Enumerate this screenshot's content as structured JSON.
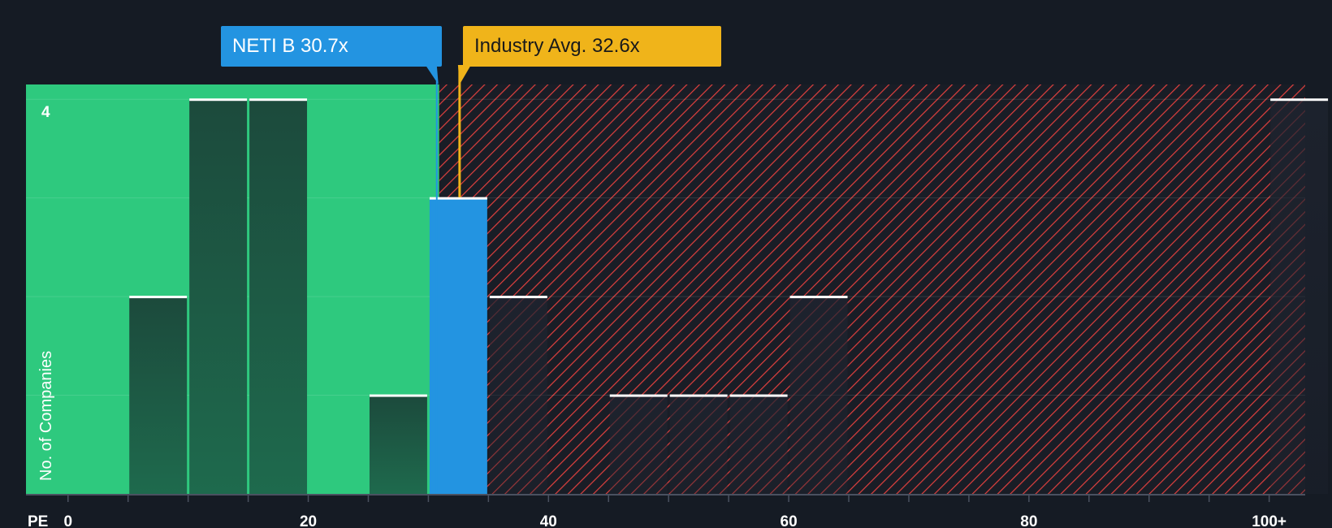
{
  "colors": {
    "background": "#151b24",
    "fair_zone": "#2ec97e",
    "expensive_hatch": "#e0403e",
    "company_bar": "#2394e1",
    "industry_line": "#f0b41a",
    "bar_dark": "#1c4a3c",
    "bar_cap": "#ffffff"
  },
  "callouts": {
    "company_label": "NETI B 30.7x",
    "industry_label": "Industry Avg. 32.6x"
  },
  "chart_data": {
    "type": "bar",
    "title": "",
    "xlabel": "PE",
    "ylabel": "No. of Companies",
    "xlim": [
      -3.5,
      103
    ],
    "ylim": [
      0,
      4.15
    ],
    "x_ticks": [
      0,
      20,
      40,
      60,
      80,
      100
    ],
    "x_tick_labels": [
      "0",
      "20",
      "40",
      "60",
      "80",
      "100+"
    ],
    "y_tick_labels": [
      {
        "value": 4,
        "label": "4"
      }
    ],
    "bin_width": 5,
    "bins": [
      {
        "start": 5,
        "count": 2
      },
      {
        "start": 10,
        "count": 4
      },
      {
        "start": 15,
        "count": 4
      },
      {
        "start": 25,
        "count": 1
      },
      {
        "start": 30,
        "count": 3,
        "highlight": true
      },
      {
        "start": 35,
        "count": 2
      },
      {
        "start": 45,
        "count": 1
      },
      {
        "start": 50,
        "count": 1
      },
      {
        "start": 55,
        "count": 1
      },
      {
        "start": 60,
        "count": 2
      },
      {
        "start": 100,
        "count": 4
      }
    ],
    "company": {
      "name": "NETI B",
      "pe": 30.7
    },
    "industry_avg": 32.6
  }
}
